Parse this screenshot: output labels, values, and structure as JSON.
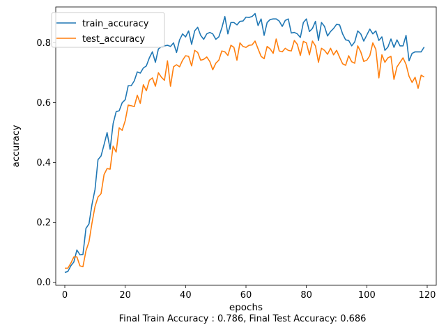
{
  "chart_data": {
    "type": "line",
    "title": "",
    "xlabel": "epochs",
    "ylabel": "accuracy",
    "caption": "Final Train Accuracy : 0.786, Final Test Accuracy: 0.686",
    "xlim": [
      -3,
      123
    ],
    "ylim": [
      -0.01,
      0.92
    ],
    "xticks": [
      0,
      20,
      40,
      60,
      80,
      100,
      120
    ],
    "yticks": [
      0.0,
      0.2,
      0.4,
      0.6,
      0.8
    ],
    "ytick_labels": [
      "0.0",
      "0.2",
      "0.4",
      "0.6",
      "0.8"
    ],
    "xtick_labels": [
      "0",
      "20",
      "40",
      "60",
      "80",
      "100",
      "120"
    ],
    "legend_position": "top-left",
    "grid": false,
    "series": [
      {
        "name": "train_accuracy",
        "color": "#1f77b4",
        "values": [
          0.033,
          0.036,
          0.055,
          0.068,
          0.108,
          0.092,
          0.093,
          0.18,
          0.195,
          0.26,
          0.31,
          0.41,
          0.422,
          0.46,
          0.5,
          0.445,
          0.53,
          0.57,
          0.573,
          0.6,
          0.61,
          0.657,
          0.657,
          0.673,
          0.703,
          0.699,
          0.716,
          0.723,
          0.75,
          0.77,
          0.735,
          0.78,
          0.787,
          0.79,
          0.792,
          0.788,
          0.8,
          0.768,
          0.81,
          0.83,
          0.82,
          0.84,
          0.795,
          0.84,
          0.852,
          0.825,
          0.812,
          0.83,
          0.835,
          0.83,
          0.812,
          0.82,
          0.85,
          0.888,
          0.83,
          0.868,
          0.868,
          0.86,
          0.872,
          0.873,
          0.886,
          0.885,
          0.888,
          0.898,
          0.858,
          0.88,
          0.825,
          0.868,
          0.878,
          0.88,
          0.88,
          0.873,
          0.855,
          0.875,
          0.88,
          0.833,
          0.835,
          0.83,
          0.818,
          0.868,
          0.88,
          0.838,
          0.848,
          0.872,
          0.808,
          0.868,
          0.855,
          0.823,
          0.838,
          0.848,
          0.862,
          0.86,
          0.83,
          0.81,
          0.808,
          0.79,
          0.803,
          0.84,
          0.83,
          0.806,
          0.826,
          0.846,
          0.83,
          0.84,
          0.808,
          0.82,
          0.775,
          0.786,
          0.813,
          0.785,
          0.81,
          0.79,
          0.79,
          0.825,
          0.74,
          0.765,
          0.77,
          0.77,
          0.77,
          0.786
        ]
      },
      {
        "name": "test_accuracy",
        "color": "#ff7f0e",
        "values": [
          0.047,
          0.047,
          0.064,
          0.085,
          0.085,
          0.055,
          0.052,
          0.105,
          0.135,
          0.198,
          0.253,
          0.285,
          0.296,
          0.36,
          0.38,
          0.378,
          0.455,
          0.435,
          0.516,
          0.508,
          0.54,
          0.592,
          0.59,
          0.587,
          0.625,
          0.598,
          0.66,
          0.64,
          0.675,
          0.683,
          0.655,
          0.7,
          0.685,
          0.675,
          0.74,
          0.655,
          0.72,
          0.727,
          0.72,
          0.742,
          0.757,
          0.755,
          0.723,
          0.775,
          0.768,
          0.742,
          0.745,
          0.753,
          0.738,
          0.71,
          0.732,
          0.742,
          0.773,
          0.77,
          0.758,
          0.792,
          0.785,
          0.742,
          0.8,
          0.788,
          0.785,
          0.792,
          0.793,
          0.806,
          0.78,
          0.755,
          0.747,
          0.788,
          0.78,
          0.765,
          0.813,
          0.773,
          0.77,
          0.782,
          0.775,
          0.773,
          0.808,
          0.795,
          0.758,
          0.805,
          0.8,
          0.76,
          0.806,
          0.79,
          0.735,
          0.782,
          0.775,
          0.762,
          0.782,
          0.76,
          0.775,
          0.752,
          0.73,
          0.725,
          0.757,
          0.737,
          0.732,
          0.79,
          0.77,
          0.738,
          0.742,
          0.757,
          0.8,
          0.778,
          0.683,
          0.76,
          0.735,
          0.75,
          0.755,
          0.678,
          0.72,
          0.735,
          0.75,
          0.728,
          0.688,
          0.668,
          0.685,
          0.648,
          0.692,
          0.686
        ]
      }
    ]
  }
}
